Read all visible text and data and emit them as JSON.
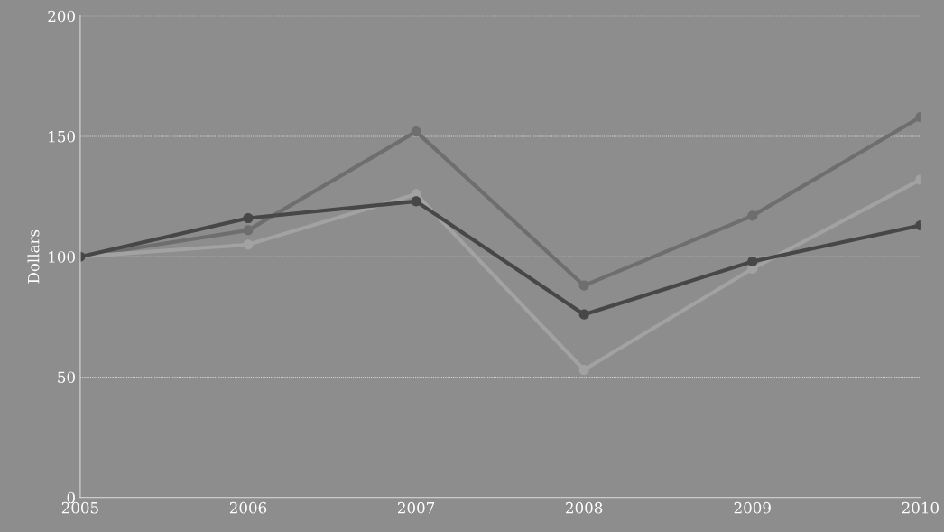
{
  "chart_data": {
    "type": "line",
    "ylabel": "Dollars",
    "x": [
      "2005",
      "2006",
      "2007",
      "2008",
      "2009",
      "2010"
    ],
    "xlim": [
      "2005",
      "2010"
    ],
    "xticks": [
      {
        "value": "2005",
        "label": "2005"
      },
      {
        "value": "2006",
        "label": "2006"
      },
      {
        "value": "2007",
        "label": "2007"
      },
      {
        "value": "2008",
        "label": "2008"
      },
      {
        "value": "2009",
        "label": "2009"
      },
      {
        "value": "2010",
        "label": "2010"
      }
    ],
    "ylim": [
      0,
      200
    ],
    "yticks": [
      0,
      50,
      100,
      150,
      200
    ],
    "grid": "y",
    "marker": "circle",
    "line_style": "solid",
    "series": [
      {
        "color": "#6e6e6e",
        "values": [
          100,
          111,
          152,
          88,
          117,
          158
        ]
      },
      {
        "color": "#a2a2a2",
        "values": [
          100,
          105,
          126,
          53,
          95,
          132
        ]
      },
      {
        "color": "#474747",
        "values": [
          100,
          116,
          123,
          76,
          98,
          113
        ]
      }
    ]
  }
}
